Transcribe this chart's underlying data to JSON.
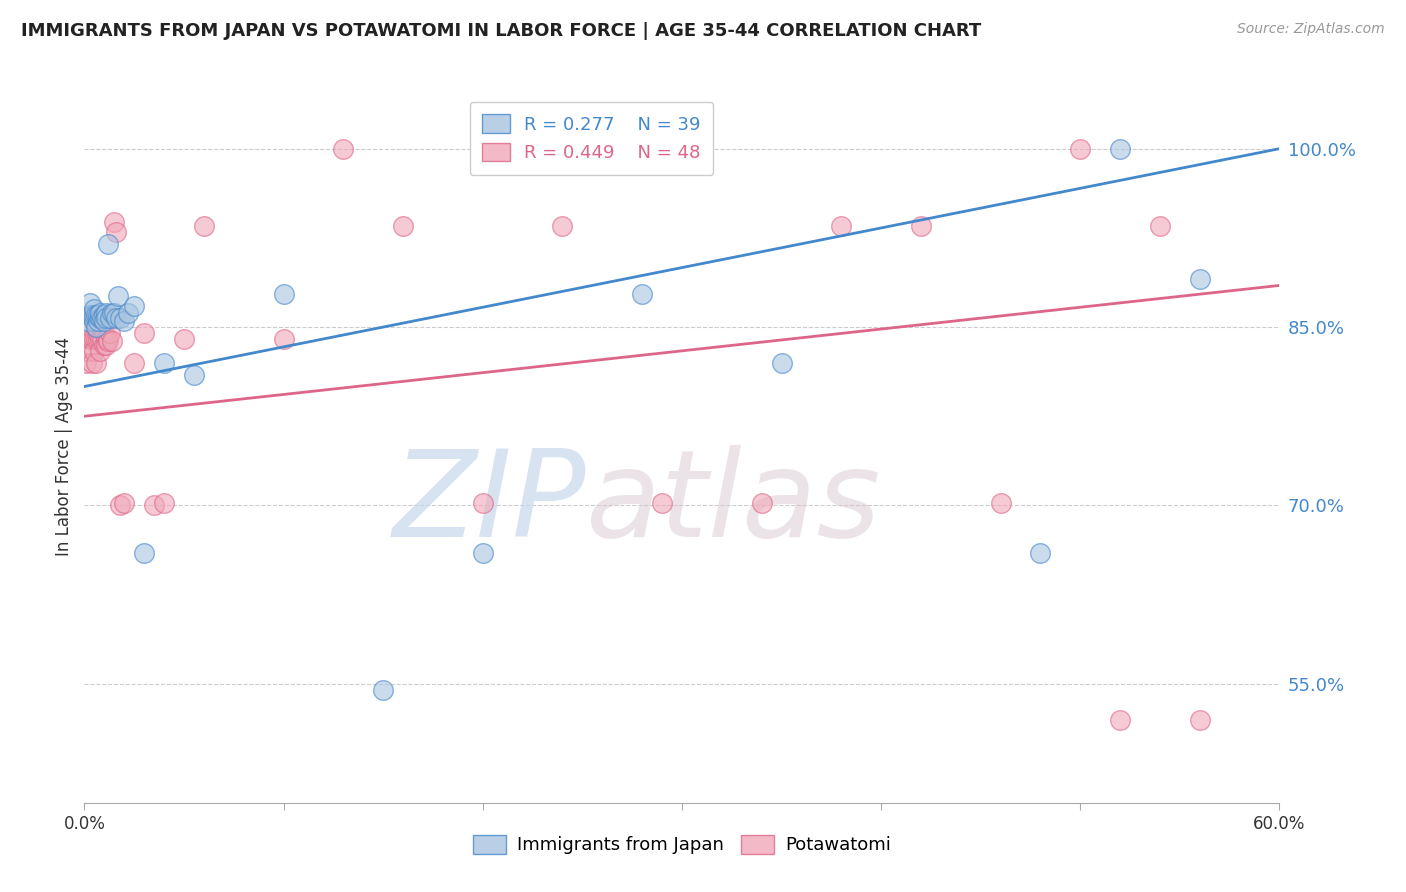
{
  "title": "IMMIGRANTS FROM JAPAN VS POTAWATOMI IN LABOR FORCE | AGE 35-44 CORRELATION CHART",
  "source": "Source: ZipAtlas.com",
  "ylabel": "In Labor Force | Age 35-44",
  "xlim": [
    0.0,
    0.6
  ],
  "ylim": [
    0.45,
    1.05
  ],
  "xticks": [
    0.0,
    0.1,
    0.2,
    0.3,
    0.4,
    0.5,
    0.6
  ],
  "xticklabels": [
    "0.0%",
    "",
    "",
    "",
    "",
    "",
    "60.0%"
  ],
  "yticks": [
    0.55,
    0.7,
    0.85,
    1.0
  ],
  "yticklabels": [
    "55.0%",
    "70.0%",
    "85.0%",
    "100.0%"
  ],
  "japan_R": 0.277,
  "japan_N": 39,
  "potawatomi_R": 0.449,
  "potawatomi_N": 48,
  "japan_color": "#a8c4e0",
  "potawatomi_color": "#f0a8b8",
  "japan_line_color": "#4488cc",
  "potawatomi_line_color": "#dd6688",
  "watermark_zip": "ZIP",
  "watermark_atlas": "atlas",
  "background_color": "#ffffff",
  "japan_x": [
    0.002,
    0.003,
    0.003,
    0.004,
    0.005,
    0.005,
    0.005,
    0.006,
    0.006,
    0.007,
    0.007,
    0.008,
    0.008,
    0.009,
    0.01,
    0.01,
    0.011,
    0.011,
    0.012,
    0.013,
    0.014,
    0.015,
    0.016,
    0.017,
    0.018,
    0.02,
    0.022,
    0.025,
    0.03,
    0.04,
    0.055,
    0.1,
    0.15,
    0.2,
    0.28,
    0.35,
    0.48,
    0.52,
    0.56
  ],
  "japan_y": [
    0.855,
    0.86,
    0.87,
    0.86,
    0.855,
    0.86,
    0.865,
    0.85,
    0.86,
    0.855,
    0.86,
    0.858,
    0.862,
    0.858,
    0.86,
    0.855,
    0.862,
    0.858,
    0.92,
    0.858,
    0.862,
    0.862,
    0.858,
    0.876,
    0.858,
    0.855,
    0.862,
    0.868,
    0.66,
    0.82,
    0.81,
    0.878,
    0.545,
    0.66,
    0.878,
    0.82,
    0.66,
    1.0,
    0.89
  ],
  "potawatomi_x": [
    0.001,
    0.002,
    0.003,
    0.003,
    0.004,
    0.004,
    0.005,
    0.005,
    0.006,
    0.006,
    0.007,
    0.007,
    0.008,
    0.008,
    0.009,
    0.009,
    0.01,
    0.01,
    0.011,
    0.011,
    0.012,
    0.012,
    0.013,
    0.014,
    0.015,
    0.016,
    0.018,
    0.02,
    0.025,
    0.03,
    0.035,
    0.04,
    0.05,
    0.06,
    0.1,
    0.13,
    0.16,
    0.2,
    0.24,
    0.29,
    0.34,
    0.38,
    0.42,
    0.46,
    0.5,
    0.52,
    0.54,
    0.56
  ],
  "potawatomi_y": [
    0.82,
    0.83,
    0.84,
    0.85,
    0.84,
    0.82,
    0.84,
    0.83,
    0.84,
    0.82,
    0.84,
    0.845,
    0.84,
    0.83,
    0.84,
    0.85,
    0.835,
    0.845,
    0.84,
    0.835,
    0.84,
    0.838,
    0.845,
    0.838,
    0.938,
    0.93,
    0.7,
    0.702,
    0.82,
    0.845,
    0.7,
    0.702,
    0.84,
    0.935,
    0.84,
    1.0,
    0.935,
    0.702,
    0.935,
    0.702,
    0.702,
    0.935,
    0.935,
    0.702,
    1.0,
    0.52,
    0.935,
    0.52
  ]
}
